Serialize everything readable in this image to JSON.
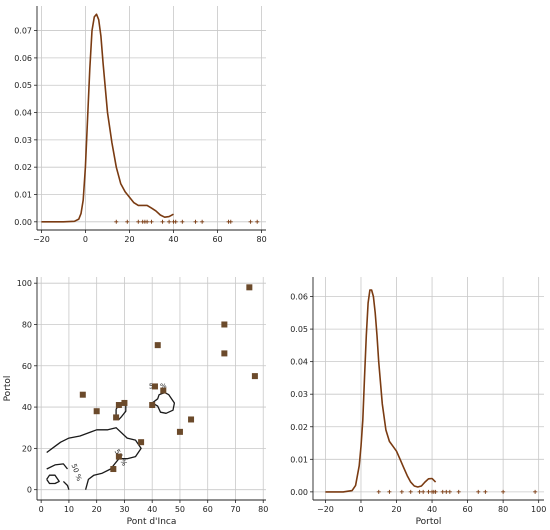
{
  "chart_data": [
    {
      "id": "top_left",
      "type": "line",
      "subtype": "kde_with_rug",
      "xlabel": "",
      "ylabel": "",
      "xlim": [
        -22,
        82
      ],
      "ylim": [
        -0.003,
        0.079
      ],
      "x_ticks": [
        -20,
        0,
        20,
        40,
        60,
        80
      ],
      "x_tick_labels": [
        "−20",
        "0",
        "20",
        "40",
        "60",
        "80"
      ],
      "y_ticks": [
        0.0,
        0.01,
        0.02,
        0.03,
        0.04,
        0.05,
        0.06,
        0.07
      ],
      "y_tick_labels": [
        "0.00",
        "0.01",
        "0.02",
        "0.03",
        "0.04",
        "0.05",
        "0.06",
        "0.07"
      ],
      "grid": true,
      "line_color": "#7a3b12",
      "series": [
        {
          "x": [
            -20,
            -10,
            -5,
            -3,
            -2,
            -1,
            0,
            1,
            2,
            3,
            4,
            5,
            6,
            7,
            8,
            10,
            12,
            14,
            16,
            18,
            20,
            22,
            24,
            26,
            28,
            30,
            32,
            34,
            36,
            38,
            40
          ],
          "y": [
            0.0,
            0.0,
            0.0002,
            0.001,
            0.003,
            0.008,
            0.02,
            0.038,
            0.056,
            0.07,
            0.075,
            0.076,
            0.074,
            0.068,
            0.058,
            0.04,
            0.029,
            0.02,
            0.014,
            0.011,
            0.009,
            0.007,
            0.006,
            0.006,
            0.006,
            0.005,
            0.004,
            0.0025,
            0.0017,
            0.0019,
            0.0028
          ]
        }
      ],
      "rug": [
        14,
        19,
        24,
        26,
        27,
        28,
        30,
        35,
        38,
        40,
        41,
        44,
        50,
        53,
        65,
        66,
        75,
        78
      ]
    },
    {
      "id": "bottom_left",
      "type": "scatter",
      "subtype": "scatter_with_density_contours",
      "xlabel": "Pont d'Inca",
      "ylabel": "Portol",
      "xlim": [
        -1.5,
        81
      ],
      "ylim": [
        -5,
        103
      ],
      "x_ticks": [
        0,
        10,
        20,
        30,
        40,
        50,
        60,
        70,
        80
      ],
      "x_tick_labels": [
        "0",
        "10",
        "20",
        "30",
        "40",
        "50",
        "60",
        "70",
        "80"
      ],
      "y_ticks": [
        0,
        20,
        40,
        60,
        80,
        100
      ],
      "y_tick_labels": [
        "0",
        "20",
        "40",
        "60",
        "80",
        "100"
      ],
      "grid": true,
      "marker_color": "#6b4a2b",
      "points": [
        {
          "x": 75,
          "y": 98
        },
        {
          "x": 66,
          "y": 80
        },
        {
          "x": 66,
          "y": 66
        },
        {
          "x": 77,
          "y": 55
        },
        {
          "x": 42,
          "y": 70
        },
        {
          "x": 41,
          "y": 50
        },
        {
          "x": 44,
          "y": 48
        },
        {
          "x": 15,
          "y": 46
        },
        {
          "x": 20,
          "y": 38
        },
        {
          "x": 28,
          "y": 41
        },
        {
          "x": 30,
          "y": 42
        },
        {
          "x": 40,
          "y": 41
        },
        {
          "x": 27,
          "y": 35
        },
        {
          "x": 54,
          "y": 34
        },
        {
          "x": 50,
          "y": 28
        },
        {
          "x": 36,
          "y": 23
        },
        {
          "x": 28,
          "y": 16
        },
        {
          "x": 26,
          "y": 10
        }
      ],
      "contours": [
        {
          "label": "50 %",
          "paths": [
            [
              [
                2,
                18
              ],
              [
                5,
                21
              ],
              [
                7,
                23
              ],
              [
                10,
                25
              ],
              [
                14,
                26
              ],
              [
                18,
                28
              ],
              [
                20,
                29
              ],
              [
                24,
                29
              ],
              [
                27,
                30
              ],
              [
                31,
                25
              ],
              [
                34,
                24
              ],
              [
                36,
                20
              ],
              [
                34,
                16
              ],
              [
                31,
                15
              ],
              [
                28,
                15
              ],
              [
                25,
                10
              ],
              [
                22,
                8
              ],
              [
                19,
                7
              ],
              [
                17,
                5
              ],
              [
                16,
                0
              ]
            ],
            [
              [
                2,
                10
              ],
              [
                5,
                12
              ],
              [
                8,
                12.5
              ],
              [
                9.5,
                10
              ]
            ],
            [
              [
                2,
                5
              ],
              [
                3,
                7
              ],
              [
                5,
                7
              ],
              [
                6.5,
                4
              ],
              [
                5,
                3
              ],
              [
                3,
                3
              ],
              [
                2,
                5
              ]
            ],
            [
              [
                8,
                4
              ],
              [
                9.5,
                2
              ],
              [
                10,
                0
              ]
            ]
          ]
        },
        {
          "label": "50 %",
          "paths": [
            [
              [
                27,
                39
              ],
              [
                28,
                41
              ],
              [
                29,
                42
              ],
              [
                30.5,
                41
              ],
              [
                30.5,
                38
              ],
              [
                29,
                35.5
              ],
              [
                28,
                34
              ],
              [
                27,
                36
              ],
              [
                27,
                39
              ]
            ]
          ]
        },
        {
          "label": "50 %",
          "paths": [
            [
              [
                40,
                42
              ],
              [
                42,
                44
              ],
              [
                42.5,
                46
              ],
              [
                44.5,
                47
              ],
              [
                46,
                46
              ],
              [
                48,
                42
              ],
              [
                47.5,
                38.5
              ],
              [
                45,
                37
              ],
              [
                43,
                37.5
              ],
              [
                42,
                40.5
              ],
              [
                40,
                42
              ]
            ]
          ]
        }
      ],
      "contour_label_texts": [
        "50 %",
        "50 %",
        "50 %"
      ]
    },
    {
      "id": "bottom_right",
      "type": "line",
      "subtype": "kde_with_rug",
      "xlabel": "Portol",
      "ylabel": "",
      "xlim": [
        -27,
        103
      ],
      "ylim": [
        -0.0025,
        0.066
      ],
      "x_ticks": [
        -20,
        0,
        20,
        40,
        60,
        80,
        100
      ],
      "x_tick_labels": [
        "−20",
        "0",
        "20",
        "40",
        "60",
        "80",
        "100"
      ],
      "y_ticks": [
        0.0,
        0.01,
        0.02,
        0.03,
        0.04,
        0.05,
        0.06
      ],
      "y_tick_labels": [
        "0.00",
        "0.01",
        "0.02",
        "0.03",
        "0.04",
        "0.05",
        "0.06"
      ],
      "grid": true,
      "line_color": "#7a3b12",
      "series": [
        {
          "x": [
            -20,
            -10,
            -5,
            -3,
            -1,
            0,
            1,
            2,
            3,
            4,
            5,
            6,
            7,
            8,
            9,
            10,
            12,
            14,
            16,
            18,
            20,
            22,
            24,
            26,
            28,
            30,
            32,
            34,
            36,
            38,
            40,
            42
          ],
          "y": [
            0.0,
            0.0,
            0.0004,
            0.002,
            0.008,
            0.014,
            0.022,
            0.035,
            0.048,
            0.058,
            0.062,
            0.062,
            0.06,
            0.055,
            0.048,
            0.04,
            0.027,
            0.019,
            0.0155,
            0.014,
            0.0125,
            0.01,
            0.0075,
            0.005,
            0.003,
            0.0018,
            0.0015,
            0.0018,
            0.003,
            0.004,
            0.0041,
            0.003
          ]
        }
      ],
      "rug": [
        10,
        16,
        23,
        28,
        33,
        35,
        38,
        40,
        41,
        42,
        46,
        48,
        50,
        55,
        66,
        70,
        80,
        98
      ]
    }
  ]
}
